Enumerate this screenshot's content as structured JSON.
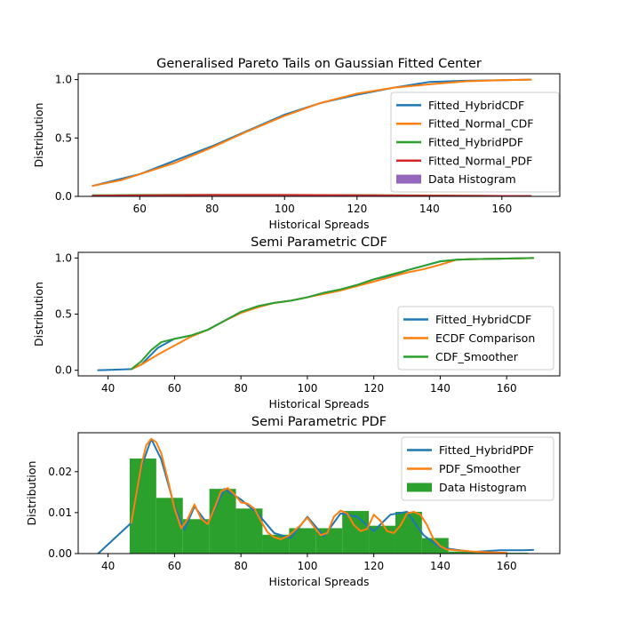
{
  "colors": {
    "blue": "#1f77b4",
    "orange": "#ff7f0e",
    "green": "#2ca02c",
    "red": "#d62728",
    "purple": "#9467bd"
  },
  "chart_data": [
    {
      "type": "line",
      "title": "Generalised Pareto Tails on Gaussian Fitted Center",
      "xlabel": "Historical Spreads",
      "ylabel": "Distribution",
      "xlim": [
        43,
        176
      ],
      "ylim": [
        0,
        1.05
      ],
      "xticks": [
        60,
        80,
        100,
        120,
        140,
        160
      ],
      "yticks": [
        0.0,
        0.5,
        1.0
      ],
      "grid": false,
      "legend": "bottom-right",
      "series": [
        {
          "name": "Fitted_HybridCDF",
          "color": "#1f77b4",
          "kind": "line",
          "x": [
            47,
            60,
            80,
            100,
            110,
            120,
            130,
            140,
            150,
            160,
            168
          ],
          "y": [
            0.09,
            0.19,
            0.43,
            0.7,
            0.8,
            0.87,
            0.93,
            0.98,
            0.99,
            0.995,
            1.0
          ]
        },
        {
          "name": "Fitted_Normal_CDF",
          "color": "#ff7f0e",
          "kind": "line",
          "x": [
            47,
            55,
            60,
            70,
            80,
            90,
            100,
            110,
            120,
            130,
            140,
            150,
            160,
            168
          ],
          "y": [
            0.09,
            0.14,
            0.19,
            0.29,
            0.42,
            0.56,
            0.69,
            0.8,
            0.88,
            0.93,
            0.96,
            0.985,
            0.995,
            1.0
          ]
        },
        {
          "name": "Fitted_HybridPDF",
          "color": "#2ca02c",
          "kind": "line",
          "x": [
            47,
            60,
            80,
            100,
            120,
            140,
            160,
            168
          ],
          "y": [
            0.01,
            0.012,
            0.013,
            0.012,
            0.011,
            0.008,
            0.004,
            0.003
          ]
        },
        {
          "name": "Fitted_Normal_PDF",
          "color": "#d62728",
          "kind": "line",
          "x": [
            47,
            60,
            80,
            100,
            120,
            140,
            160,
            168
          ],
          "y": [
            0.006,
            0.009,
            0.012,
            0.012,
            0.01,
            0.007,
            0.004,
            0.003
          ]
        },
        {
          "name": "Data Histogram",
          "color": "#9467bd",
          "kind": "bar",
          "x": [
            47,
            168
          ],
          "y": [
            0.005,
            0.005
          ]
        }
      ]
    },
    {
      "type": "line",
      "title": "Semi Parametric CDF",
      "xlabel": "Historical Spreads",
      "ylabel": "Distribution",
      "xlim": [
        31,
        176
      ],
      "ylim": [
        -0.05,
        1.05
      ],
      "xticks": [
        40,
        60,
        80,
        100,
        120,
        140,
        160
      ],
      "yticks": [
        0.0,
        0.5,
        1.0
      ],
      "grid": false,
      "legend": "bottom-right",
      "series": [
        {
          "name": "Fitted_HybridCDF",
          "color": "#1f77b4",
          "x": [
            37,
            47,
            50,
            55,
            60,
            65,
            70,
            75,
            80,
            85,
            90,
            95,
            100,
            105,
            110,
            115,
            120,
            125,
            130,
            135,
            140,
            145,
            150,
            160,
            168
          ],
          "y": [
            0.0,
            0.01,
            0.05,
            0.2,
            0.28,
            0.31,
            0.36,
            0.44,
            0.52,
            0.57,
            0.6,
            0.62,
            0.65,
            0.69,
            0.72,
            0.76,
            0.81,
            0.84,
            0.89,
            0.93,
            0.97,
            0.985,
            0.99,
            0.995,
            1.0
          ]
        },
        {
          "name": "ECDF Comparison",
          "color": "#ff7f0e",
          "x": [
            47,
            50,
            55,
            60,
            65,
            70,
            75,
            80,
            85,
            90,
            95,
            100,
            105,
            110,
            115,
            120,
            125,
            130,
            135,
            140,
            145,
            150,
            160,
            168
          ],
          "y": [
            0.01,
            0.05,
            0.14,
            0.22,
            0.3,
            0.36,
            0.44,
            0.51,
            0.56,
            0.6,
            0.62,
            0.65,
            0.68,
            0.71,
            0.75,
            0.79,
            0.83,
            0.87,
            0.9,
            0.94,
            0.985,
            0.99,
            0.995,
            1.0
          ]
        },
        {
          "name": "CDF_Smoother",
          "color": "#2ca02c",
          "x": [
            47,
            50,
            53,
            56,
            60,
            65,
            70,
            75,
            80,
            85,
            90,
            95,
            100,
            105,
            110,
            115,
            120,
            125,
            130,
            135,
            140,
            145,
            150,
            160,
            168
          ],
          "y": [
            0.01,
            0.08,
            0.18,
            0.25,
            0.28,
            0.31,
            0.36,
            0.44,
            0.52,
            0.57,
            0.6,
            0.62,
            0.65,
            0.69,
            0.72,
            0.76,
            0.81,
            0.85,
            0.89,
            0.93,
            0.97,
            0.985,
            0.99,
            0.995,
            1.0
          ]
        }
      ]
    },
    {
      "type": "bar",
      "title": "Semi Parametric PDF",
      "xlabel": "Historical Spreads",
      "ylabel": "Distribution",
      "xlim": [
        31,
        176
      ],
      "ylim": [
        0,
        0.0295
      ],
      "xticks": [
        40,
        60,
        80,
        100,
        120,
        140,
        160
      ],
      "yticks": [
        0.0,
        0.01,
        0.02
      ],
      "ytick_labels": [
        "0.00",
        "0.01",
        "0.02"
      ],
      "grid": false,
      "legend": "top-right",
      "histogram": {
        "name": "Data Histogram",
        "color": "#2ca02c",
        "bin_edges": [
          46.5,
          54.5,
          62.5,
          70.5,
          78.5,
          86.5,
          94.5,
          102.5,
          110.5,
          118.5,
          126.5,
          134.5,
          142.5,
          150.5,
          158.5,
          166.5
        ],
        "values": [
          0.0232,
          0.0136,
          0.0084,
          0.0158,
          0.011,
          0.0046,
          0.0062,
          0.0062,
          0.0104,
          0.0068,
          0.0102,
          0.0038,
          0.0005,
          0.0002,
          0.0002
        ]
      },
      "series": [
        {
          "name": "Fitted_HybridPDF",
          "color": "#1f77b4",
          "x": [
            37,
            47,
            50,
            53,
            56,
            60,
            63,
            66,
            70,
            75,
            80,
            85,
            90,
            95,
            100,
            105,
            110,
            115,
            120,
            125,
            130,
            135,
            140,
            145,
            150,
            158,
            165,
            168
          ],
          "y": [
            0.0,
            0.0075,
            0.021,
            0.028,
            0.023,
            0.0115,
            0.0058,
            0.0115,
            0.0072,
            0.0158,
            0.0132,
            0.0098,
            0.005,
            0.0038,
            0.009,
            0.0042,
            0.0098,
            0.009,
            0.0055,
            0.0095,
            0.0102,
            0.0045,
            0.0015,
            0.0009,
            0.0004,
            0.0008,
            0.0008,
            0.0009
          ]
        },
        {
          "name": "PDF_Smoother",
          "color": "#ff7f0e",
          "x": [
            47,
            48.5,
            50,
            51.5,
            53,
            54.5,
            56,
            58,
            60,
            62,
            64,
            66,
            68,
            70,
            72,
            74,
            76,
            78,
            80,
            82,
            84,
            86,
            88,
            90,
            92,
            94,
            96,
            98,
            100,
            102,
            104,
            106,
            108,
            110,
            112,
            114,
            116,
            118,
            120,
            122,
            124,
            126,
            128,
            130,
            132,
            134,
            136,
            138,
            140,
            142,
            145,
            150,
            155,
            160
          ],
          "y": [
            0.0075,
            0.0145,
            0.0215,
            0.0265,
            0.028,
            0.0272,
            0.0245,
            0.018,
            0.011,
            0.0062,
            0.0085,
            0.012,
            0.0085,
            0.0072,
            0.011,
            0.0152,
            0.016,
            0.0145,
            0.0125,
            0.0122,
            0.011,
            0.008,
            0.0052,
            0.004,
            0.0035,
            0.0042,
            0.0055,
            0.007,
            0.0088,
            0.0065,
            0.0045,
            0.005,
            0.009,
            0.0105,
            0.0098,
            0.007,
            0.0055,
            0.006,
            0.0095,
            0.008,
            0.0055,
            0.005,
            0.0068,
            0.0098,
            0.0102,
            0.0095,
            0.007,
            0.0035,
            0.0018,
            0.001,
            0.0008,
            0.0005,
            0.0003,
            0.0002
          ]
        }
      ]
    }
  ]
}
